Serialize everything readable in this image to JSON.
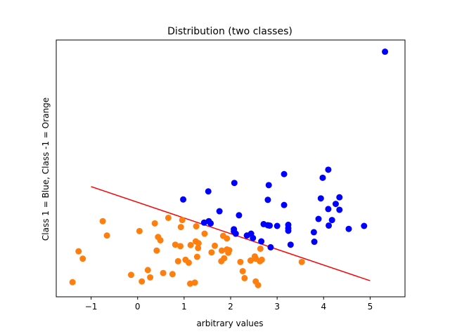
{
  "chart_data": {
    "type": "scatter",
    "title": "Distribution (two classes)",
    "xlabel": "arbitrary values",
    "ylabel": "Class 1 = Blue, Class -1 = Orange",
    "xlim": [
      -1.75,
      5.75
    ],
    "x_ticks": [
      -1,
      0,
      1,
      2,
      3,
      4,
      5
    ],
    "y_ticks_visible": false,
    "grid": false,
    "legend": "none",
    "series": [
      {
        "color": "#0000ff",
        "points": [
          [
            5.32,
            100.3
          ],
          [
            4.1,
            68.2
          ],
          [
            3.98,
            66.0
          ],
          [
            3.15,
            67.0
          ],
          [
            2.08,
            64.6
          ],
          [
            2.82,
            64.0
          ],
          [
            1.52,
            62.3
          ],
          [
            0.98,
            60.1
          ],
          [
            2.8,
            60.0
          ],
          [
            4.34,
            60.7
          ],
          [
            3.94,
            60.4
          ],
          [
            4.26,
            58.9
          ],
          [
            3.15,
            58.6
          ],
          [
            4.34,
            57.3
          ],
          [
            4.1,
            57.5
          ],
          [
            1.76,
            56.9
          ],
          [
            2.18,
            55.8
          ],
          [
            3.89,
            54.8
          ],
          [
            4.18,
            54.5
          ],
          [
            1.53,
            54.2
          ],
          [
            1.43,
            53.8
          ],
          [
            1.57,
            53.6
          ],
          [
            2.71,
            53.4
          ],
          [
            2.8,
            53.1
          ],
          [
            2.84,
            53.0
          ],
          [
            3.24,
            53.2
          ],
          [
            3.0,
            52.9
          ],
          [
            4.11,
            53.0
          ],
          [
            4.87,
            52.9
          ],
          [
            3.24,
            52.3
          ],
          [
            2.07,
            52.0
          ],
          [
            4.54,
            52.1
          ],
          [
            3.24,
            51.6
          ],
          [
            2.07,
            51.4
          ],
          [
            3.79,
            51.2
          ],
          [
            2.11,
            50.8
          ],
          [
            2.44,
            50.8
          ],
          [
            2.35,
            50.3
          ],
          [
            2.48,
            49.6
          ],
          [
            3.8,
            48.6
          ],
          [
            2.66,
            48.7
          ],
          [
            3.29,
            47.8
          ],
          [
            2.86,
            47.1
          ]
        ]
      },
      {
        "color": "#ff7f0e",
        "points": [
          [
            0.66,
            55.1
          ],
          [
            0.96,
            54.5
          ],
          [
            -0.75,
            54.2
          ],
          [
            0.37,
            53.6
          ],
          [
            1.26,
            52.8
          ],
          [
            0.93,
            52.6
          ],
          [
            0.04,
            51.5
          ],
          [
            1.44,
            50.8
          ],
          [
            -0.66,
            50.3
          ],
          [
            1.84,
            50.2
          ],
          [
            0.44,
            49.9
          ],
          [
            1.92,
            49.5
          ],
          [
            1.25,
            48.7
          ],
          [
            0.49,
            49.0
          ],
          [
            1.31,
            48.2
          ],
          [
            1.14,
            47.7
          ],
          [
            0.92,
            47.4
          ],
          [
            1.66,
            47.5
          ],
          [
            0.81,
            47.8
          ],
          [
            1.3,
            46.9
          ],
          [
            1.92,
            46.5
          ],
          [
            2.64,
            46.7
          ],
          [
            1.81,
            46.2
          ],
          [
            1.97,
            46.3
          ],
          [
            -1.27,
            46.0
          ],
          [
            0.41,
            46.2
          ],
          [
            1.59,
            45.7
          ],
          [
            1.95,
            45.6
          ],
          [
            2.52,
            44.6
          ],
          [
            1.28,
            44.5
          ],
          [
            -1.18,
            44.0
          ],
          [
            1.86,
            44.1
          ],
          [
            1.03,
            43.7
          ],
          [
            2.54,
            44.0
          ],
          [
            2.67,
            43.7
          ],
          [
            1.8,
            43.3
          ],
          [
            0.87,
            43.3
          ],
          [
            2.21,
            43.1
          ],
          [
            3.53,
            43.1
          ],
          [
            2.43,
            43.5
          ],
          [
            1.1,
            42.9
          ],
          [
            2.63,
            43.3
          ],
          [
            0.22,
            40.9
          ],
          [
            2.26,
            40.6
          ],
          [
            -0.14,
            39.6
          ],
          [
            0.55,
            40.1
          ],
          [
            0.75,
            39.8
          ],
          [
            0.27,
            38.9
          ],
          [
            2.3,
            38.7
          ],
          [
            0.09,
            37.8
          ],
          [
            2.54,
            37.8
          ],
          [
            -1.4,
            37.6
          ],
          [
            1.23,
            37.5
          ],
          [
            1.13,
            37.2
          ],
          [
            2.59,
            36.8
          ]
        ]
      }
    ],
    "line": {
      "color": "#ff0000",
      "from": [
        -1.0,
        63.6
      ],
      "to": [
        5.0,
        38.0
      ]
    }
  }
}
